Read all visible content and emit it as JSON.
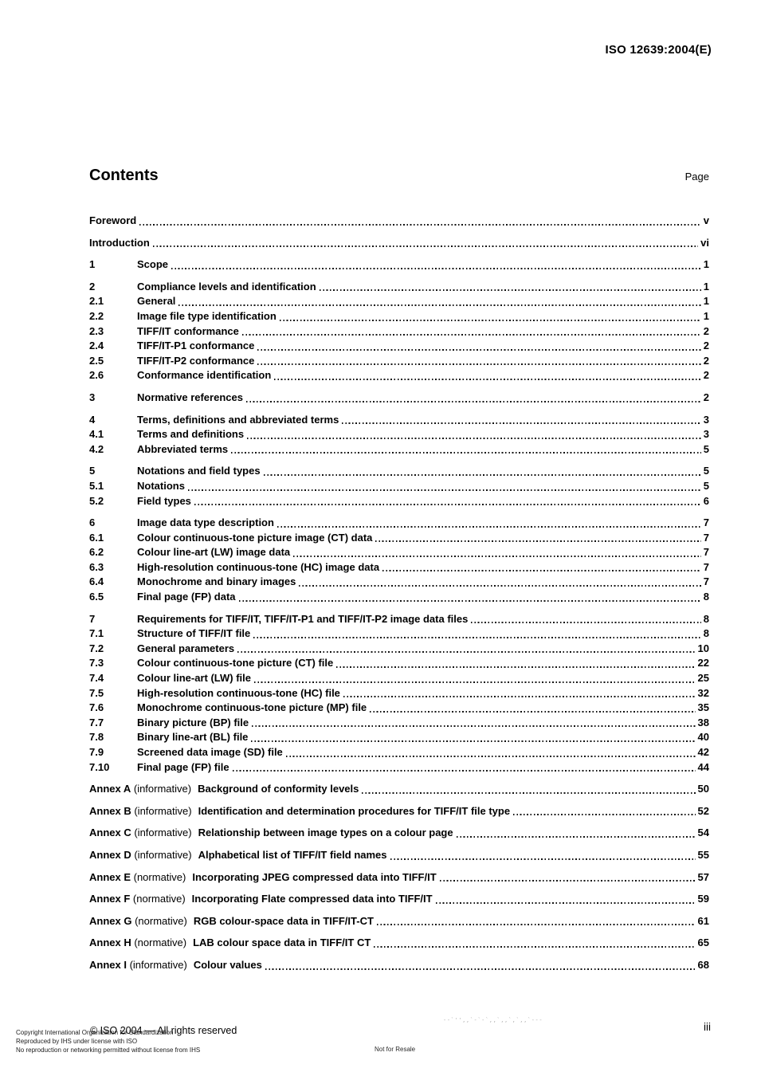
{
  "page": {
    "doc_ref": "ISO 12639:2004(E)",
    "page_number": "iii"
  },
  "toc": {
    "title": "Contents",
    "page_column_label": "Page",
    "groups": [
      {
        "entries": [
          {
            "label": "Foreword",
            "page": "v"
          }
        ]
      },
      {
        "entries": [
          {
            "label": "Introduction",
            "page": "vi"
          }
        ]
      },
      {
        "entries": [
          {
            "num": "1",
            "label": "Scope",
            "page": "1"
          }
        ]
      },
      {
        "entries": [
          {
            "num": "2",
            "label": "Compliance levels and identification",
            "page": "1"
          },
          {
            "num": "2.1",
            "label": "General",
            "page": "1"
          },
          {
            "num": "2.2",
            "label": "Image file type identification",
            "page": "1"
          },
          {
            "num": "2.3",
            "label": "TIFF/IT conformance",
            "page": "2"
          },
          {
            "num": "2.4",
            "label": "TIFF/IT-P1 conformance",
            "page": "2"
          },
          {
            "num": "2.5",
            "label": "TIFF/IT-P2 conformance",
            "page": "2"
          },
          {
            "num": "2.6",
            "label": "Conformance identification",
            "page": "2"
          }
        ]
      },
      {
        "entries": [
          {
            "num": "3",
            "label": "Normative references",
            "page": "2"
          }
        ]
      },
      {
        "entries": [
          {
            "num": "4",
            "label": "Terms, definitions and abbreviated terms",
            "page": "3"
          },
          {
            "num": "4.1",
            "label": "Terms and definitions",
            "page": "3"
          },
          {
            "num": "4.2",
            "label": "Abbreviated terms",
            "page": "5"
          }
        ]
      },
      {
        "entries": [
          {
            "num": "5",
            "label": "Notations and field types",
            "page": "5"
          },
          {
            "num": "5.1",
            "label": "Notations",
            "page": "5"
          },
          {
            "num": "5.2",
            "label": "Field types",
            "page": "6"
          }
        ]
      },
      {
        "entries": [
          {
            "num": "6",
            "label": "Image data type description",
            "page": "7"
          },
          {
            "num": "6.1",
            "label": "Colour continuous-tone picture image (CT) data",
            "page": "7"
          },
          {
            "num": "6.2",
            "label": "Colour line-art (LW) image data",
            "page": "7"
          },
          {
            "num": "6.3",
            "label": "High-resolution continuous-tone (HC) image data",
            "page": "7"
          },
          {
            "num": "6.4",
            "label": "Monochrome and binary images",
            "page": "7"
          },
          {
            "num": "6.5",
            "label": "Final page (FP) data",
            "page": "8"
          }
        ]
      },
      {
        "entries": [
          {
            "num": "7",
            "label": "Requirements for TIFF/IT, TIFF/IT-P1 and TIFF/IT-P2 image data files",
            "page": "8"
          },
          {
            "num": "7.1",
            "label": "Structure of TIFF/IT file",
            "page": "8"
          },
          {
            "num": "7.2",
            "label": "General parameters",
            "page": "10"
          },
          {
            "num": "7.3",
            "label": "Colour continuous-tone picture (CT) file",
            "page": "22"
          },
          {
            "num": "7.4",
            "label": "Colour line-art (LW) file",
            "page": "25"
          },
          {
            "num": "7.5",
            "label": "High-resolution continuous-tone (HC) file",
            "page": "32"
          },
          {
            "num": "7.6",
            "label": "Monochrome continuous-tone picture (MP) file",
            "page": "35"
          },
          {
            "num": "7.7",
            "label": "Binary picture (BP) file",
            "page": "38"
          },
          {
            "num": "7.8",
            "label": "Binary line-art (BL) file",
            "page": "40"
          },
          {
            "num": "7.9",
            "label": "Screened data image (SD) file",
            "page": "42"
          },
          {
            "num": "7.10",
            "label": "Final page (FP) file",
            "page": "44"
          }
        ]
      },
      {
        "entries": [
          {
            "prefix": "Annex A",
            "qualifier": "(informative)",
            "label": "Background of conformity levels",
            "page": "50"
          }
        ]
      },
      {
        "entries": [
          {
            "prefix": "Annex B",
            "qualifier": "(informative)",
            "label": "Identification and determination procedures for TIFF/IT file type",
            "page": "52"
          }
        ]
      },
      {
        "entries": [
          {
            "prefix": "Annex C",
            "qualifier": "(informative)",
            "label": "Relationship between image types on a colour page",
            "page": "54"
          }
        ]
      },
      {
        "entries": [
          {
            "prefix": "Annex D",
            "qualifier": "(informative)",
            "label": "Alphabetical list of TIFF/IT field names",
            "page": "55"
          }
        ]
      },
      {
        "entries": [
          {
            "prefix": "Annex E",
            "qualifier": "(normative)",
            "label": "Incorporating JPEG compressed data into TIFF/IT",
            "page": "57"
          }
        ]
      },
      {
        "entries": [
          {
            "prefix": "Annex F",
            "qualifier": "(normative)",
            "label": "Incorporating Flate compressed data into TIFF/IT",
            "page": "59"
          }
        ]
      },
      {
        "entries": [
          {
            "prefix": "Annex G",
            "qualifier": "(normative)",
            "label": "RGB colour-space data in TIFF/IT-CT",
            "page": "61"
          }
        ]
      },
      {
        "entries": [
          {
            "prefix": "Annex H",
            "qualifier": "(normative)",
            "label": "LAB colour space data in TIFF/IT CT",
            "page": "65"
          }
        ]
      },
      {
        "entries": [
          {
            "prefix": "Annex I",
            "qualifier": "(informative)",
            "label": "Colour values",
            "page": "68"
          }
        ]
      }
    ]
  },
  "footer": {
    "copyright_notice": "© ISO 2004 — All rights reserved",
    "provenance_lines": [
      "Copyright International Organization for Standardization",
      "Reproduced by IHS under license with ISO",
      "No reproduction or networking permitted without license from IHS"
    ],
    "resale_notice": "Not for Resale",
    "watermark_marks": "--`'',,`-`-`,,`,,`,`,,`---"
  }
}
